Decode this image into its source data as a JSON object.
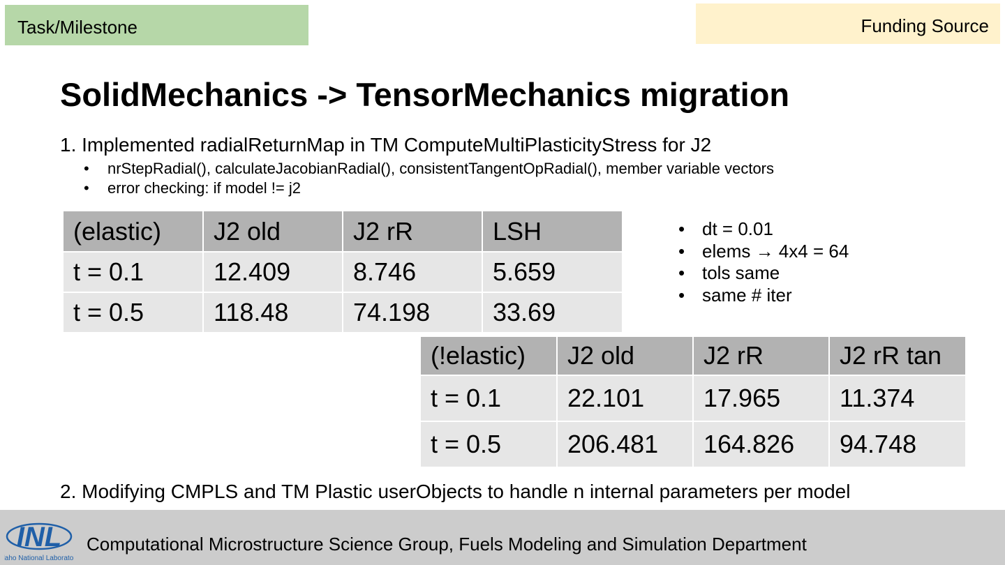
{
  "tags": {
    "task": "Task/Milestone",
    "funding": "Funding Source"
  },
  "title": "SolidMechanics -> TensorMechanics migration",
  "item1": {
    "text": "1. Implemented radialReturnMap in TM ComputeMultiPlasticityStress for J2",
    "subitems": [
      "nrStepRadial(), calculateJacobianRadial(), consistentTangentOpRadial(), member variable vectors",
      "error checking: if model != j2"
    ]
  },
  "table_elastic": {
    "headers": [
      "(elastic)",
      "J2 old",
      "J2 rR",
      "LSH"
    ],
    "rows": [
      [
        "t = 0.1",
        "12.409",
        "8.746",
        "5.659"
      ],
      [
        "t = 0.5",
        "118.48",
        "74.198",
        "33.69"
      ]
    ]
  },
  "notes": [
    "dt = 0.01",
    "elems → 4x4 = 64",
    "tols same",
    "same # iter"
  ],
  "table_plastic": {
    "headers": [
      "(!elastic)",
      "J2 old",
      "J2 rR",
      "J2 rR tan"
    ],
    "rows": [
      [
        "t = 0.1",
        "22.101",
        "17.965",
        "11.374"
      ],
      [
        "t = 0.5",
        "206.481",
        "164.826",
        "94.748"
      ]
    ]
  },
  "item2": "2. Modifying CMPLS and TM Plastic userObjects to handle n internal parameters per model",
  "footer": {
    "logo_text": "INL",
    "logo_subtext": "Idaho National Laboratory",
    "text": "Computational Microstructure Science Group, Fuels Modeling and Simulation Department"
  },
  "colors": {
    "task_tag": "#b6d7a8",
    "funding_tag": "#fff2cc",
    "table_header": "#b2b2b2",
    "table_row": "#e6e6e6",
    "footer": "#cccccc",
    "logo": "#1f5fa8"
  }
}
